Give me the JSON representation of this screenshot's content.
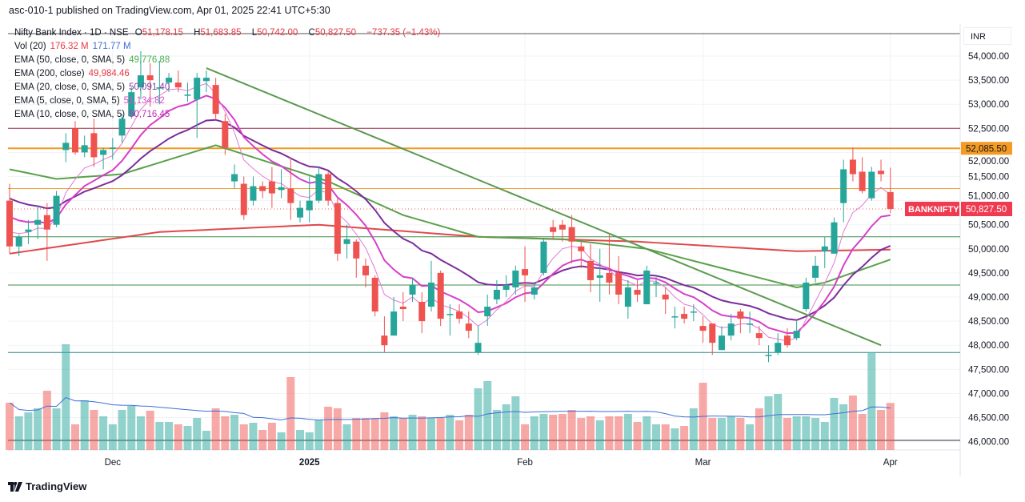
{
  "header": {
    "published": "asc-010-1 published on TradingView.com, Apr 01, 2025 22:41 UTC+5:30"
  },
  "legend": {
    "symbol": "Nifty Bank Index · 1D · NSE",
    "o_label": "O",
    "o": "51,178.15",
    "h_label": "H",
    "h": "51,683.85",
    "l_label": "L",
    "l": "50,742.00",
    "c_label": "C",
    "c": "50,827.50",
    "change": "−737.35 (−1.43%)",
    "vol_label": "Vol (20)",
    "vol": "176.32 M",
    "vol_ma": "171.77 M",
    "ema50_label": "EMA (50, close, 0, SMA, 5)",
    "ema50": "49,776.88",
    "ema200_label": "EMA (200, close)",
    "ema200": "49,984.46",
    "ema20_label": "EMA (20, close, 0, SMA, 5)",
    "ema20": "50,091.40",
    "ema5_label": "EMA (5, close, 0, SMA, 5)",
    "ema5": "51,134.82",
    "ema10_label": "EMA (10, close, 0, SMA, 5)",
    "ema10": "50,716.45"
  },
  "axis": {
    "currency": "INR",
    "ticks": [
      "54,000.00",
      "53,500.00",
      "53,000.00",
      "52,500.00",
      "52,000.00",
      "51,500.00",
      "51,000.00",
      "50,500.00",
      "50,000.00",
      "49,500.00",
      "49,000.00",
      "48,500.00",
      "48,000.00",
      "47,500.00",
      "47,000.00",
      "46,500.00",
      "46,000.00"
    ]
  },
  "price_label": {
    "symbol": "BANKNIFTY",
    "value": "50,827.50",
    "level": "52,085.50"
  },
  "footer": {
    "brand": "TradingView"
  },
  "colors": {
    "up": "#26a69a",
    "down": "#ef5350",
    "ema5": "#e27ad6",
    "ema10": "#d63fc9",
    "ema20": "#7b2d9a",
    "ema50": "#5aa04a",
    "ema200": "#e0484a",
    "level": "#f59a23"
  },
  "chart_data": {
    "type": "candlestick",
    "title": "Nifty Bank Index · 1D · NSE",
    "ylim": [
      46000,
      54000
    ],
    "price_ticks": [
      54000,
      53500,
      53000,
      52500,
      52000,
      51500,
      51000,
      50500,
      50000,
      49500,
      49000,
      48500,
      48000,
      47500,
      47000,
      46500,
      46000
    ],
    "x_labels": [
      {
        "index": 11,
        "label": "Dec"
      },
      {
        "index": 32,
        "label": "2025"
      },
      {
        "index": 55,
        "label": "Feb"
      },
      {
        "index": 74,
        "label": "Mar"
      },
      {
        "index": 94,
        "label": "Apr"
      }
    ],
    "ohlc": [
      [
        51000,
        51350,
        49900,
        50050
      ],
      [
        50050,
        50300,
        49850,
        50250
      ],
      [
        50350,
        50600,
        50100,
        50400
      ],
      [
        50500,
        50900,
        50200,
        50600
      ],
      [
        50700,
        50950,
        49750,
        50400
      ],
      [
        50500,
        51200,
        50450,
        51100
      ],
      [
        52050,
        52400,
        51800,
        52200
      ],
      [
        52500,
        52650,
        51950,
        52000
      ],
      [
        52000,
        52350,
        51900,
        52150
      ],
      [
        52400,
        52700,
        51700,
        51900
      ],
      [
        51950,
        52100,
        51650,
        52050
      ],
      [
        52100,
        52300,
        51850,
        52100
      ],
      [
        52350,
        52800,
        52200,
        52700
      ],
      [
        52750,
        53350,
        52700,
        53250
      ],
      [
        53350,
        54100,
        53100,
        53600
      ],
      [
        53600,
        53850,
        52950,
        53500
      ],
      [
        53350,
        53900,
        53000,
        53350
      ],
      [
        53450,
        53650,
        53250,
        53550
      ],
      [
        53450,
        53700,
        53250,
        53350
      ],
      [
        53200,
        53450,
        53050,
        53200
      ],
      [
        53100,
        53650,
        52300,
        53550
      ],
      [
        53480,
        53700,
        53250,
        53550
      ],
      [
        53400,
        53550,
        52700,
        52800
      ],
      [
        52650,
        52800,
        51950,
        52100
      ],
      [
        51400,
        51750,
        51250,
        51550
      ],
      [
        51350,
        51500,
        50600,
        50700
      ],
      [
        51000,
        51500,
        50900,
        51300
      ],
      [
        51300,
        51400,
        51050,
        51200
      ],
      [
        51400,
        51700,
        50850,
        51150
      ],
      [
        51220,
        51650,
        51050,
        51280
      ],
      [
        51250,
        51900,
        50600,
        50950
      ],
      [
        50650,
        51000,
        50550,
        50850
      ],
      [
        50800,
        51500,
        50550,
        51000
      ],
      [
        51000,
        51700,
        50950,
        51550
      ],
      [
        51550,
        51600,
        50900,
        51000
      ],
      [
        50950,
        51050,
        49750,
        49900
      ],
      [
        50100,
        50500,
        49800,
        50200
      ],
      [
        50150,
        50200,
        49400,
        49800
      ],
      [
        49650,
        49800,
        49200,
        49450
      ],
      [
        49400,
        49450,
        48600,
        48700
      ],
      [
        48200,
        48600,
        47850,
        48000
      ],
      [
        48200,
        49000,
        48200,
        48700
      ],
      [
        48800,
        49100,
        48500,
        48750
      ],
      [
        49050,
        49400,
        48900,
        49250
      ],
      [
        48900,
        49100,
        48250,
        48500
      ],
      [
        48800,
        49750,
        48700,
        49300
      ],
      [
        49500,
        49550,
        48400,
        48550
      ],
      [
        48650,
        48850,
        48200,
        48650
      ],
      [
        48700,
        48850,
        48450,
        48550
      ],
      [
        48450,
        48700,
        48150,
        48300
      ],
      [
        47850,
        48400,
        47800,
        48050
      ],
      [
        48600,
        49050,
        48400,
        48800
      ],
      [
        48950,
        49350,
        48850,
        49150
      ],
      [
        49150,
        49450,
        49000,
        49250
      ],
      [
        49200,
        49650,
        49050,
        49550
      ],
      [
        49580,
        50050,
        48900,
        49450
      ],
      [
        49050,
        49300,
        48950,
        49200
      ],
      [
        49500,
        50200,
        49450,
        50150
      ],
      [
        50450,
        50600,
        50200,
        50350
      ],
      [
        50500,
        50600,
        50150,
        50400
      ],
      [
        50450,
        50700,
        49700,
        50150
      ],
      [
        50050,
        50150,
        49600,
        49950
      ],
      [
        49750,
        50100,
        49100,
        49350
      ],
      [
        49400,
        50000,
        48900,
        49450
      ],
      [
        49500,
        50300,
        49050,
        49300
      ],
      [
        49500,
        49850,
        48850,
        49050
      ],
      [
        48800,
        49350,
        48550,
        49200
      ],
      [
        49150,
        49350,
        48900,
        49050
      ],
      [
        48850,
        49650,
        48850,
        49550
      ],
      [
        49300,
        49450,
        49000,
        49300
      ],
      [
        49050,
        49200,
        48650,
        48950
      ],
      [
        48600,
        48800,
        48350,
        48600
      ],
      [
        48650,
        48800,
        48450,
        48550
      ],
      [
        48700,
        48850,
        48500,
        48700
      ],
      [
        48400,
        48600,
        48050,
        48300
      ],
      [
        48450,
        48450,
        47800,
        48050
      ],
      [
        47900,
        48400,
        47900,
        48200
      ],
      [
        48200,
        48650,
        48100,
        48450
      ],
      [
        48700,
        48750,
        48250,
        48550
      ],
      [
        48450,
        48700,
        48250,
        48450
      ],
      [
        48250,
        48400,
        48000,
        48150
      ],
      [
        47800,
        48000,
        47650,
        47800
      ],
      [
        47850,
        48250,
        47800,
        48050
      ],
      [
        48200,
        48350,
        47950,
        48000
      ],
      [
        48150,
        48500,
        48100,
        48300
      ],
      [
        48750,
        49400,
        48700,
        49300
      ],
      [
        49400,
        49850,
        49300,
        49650
      ],
      [
        49950,
        50250,
        49600,
        50050
      ],
      [
        49900,
        50650,
        49900,
        50550
      ],
      [
        50950,
        51850,
        50550,
        51650
      ],
      [
        51850,
        52100,
        51400,
        51550
      ],
      [
        51600,
        51900,
        51150,
        51200
      ],
      [
        51050,
        51700,
        51000,
        51600
      ],
      [
        51620,
        51850,
        51400,
        51550
      ],
      [
        51178.15,
        51683.85,
        50742,
        50827.5
      ]
    ],
    "volume_m": [
      177,
      126,
      141,
      156,
      222,
      156,
      396,
      96,
      186,
      150,
      126,
      96,
      150,
      165,
      126,
      147,
      105,
      105,
      96,
      90,
      120,
      72,
      156,
      126,
      132,
      96,
      102,
      75,
      102,
      66,
      273,
      75,
      66,
      111,
      162,
      156,
      96,
      120,
      120,
      120,
      141,
      126,
      120,
      132,
      126,
      120,
      120,
      132,
      111,
      132,
      231,
      258,
      150,
      171,
      201,
      96,
      126,
      135,
      132,
      135,
      150,
      120,
      126,
      111,
      126,
      126,
      135,
      105,
      126,
      96,
      96,
      81,
      90,
      156,
      252,
      120,
      120,
      126,
      120,
      96,
      156,
      201,
      210,
      120,
      126,
      126,
      120,
      105,
      195,
      171,
      204,
      135,
      363,
      150,
      176.32
    ],
    "ema_seeds": {
      "ema5": 50500,
      "ema10": 50800,
      "ema20": 51150
    },
    "ema50_points": [
      [
        0,
        51650
      ],
      [
        5,
        51450
      ],
      [
        12,
        51550
      ],
      [
        22,
        52150
      ],
      [
        34,
        51400
      ],
      [
        42,
        50700
      ],
      [
        50,
        50250
      ],
      [
        59,
        50200
      ],
      [
        68,
        50000
      ],
      [
        84,
        49200
      ],
      [
        87,
        49300
      ],
      [
        94,
        49776.88
      ]
    ],
    "ema200_points": [
      [
        0,
        49900
      ],
      [
        16,
        50350
      ],
      [
        33,
        50500
      ],
      [
        50,
        50250
      ],
      [
        67,
        50150
      ],
      [
        84,
        49950
      ],
      [
        94,
        49984.46
      ]
    ],
    "horizontal_levels": [
      52500,
      52085.5,
      51250,
      50250,
      49250,
      47850
    ],
    "trendline": {
      "from": [
        21,
        53750
      ],
      "to": [
        93,
        48000
      ]
    }
  }
}
